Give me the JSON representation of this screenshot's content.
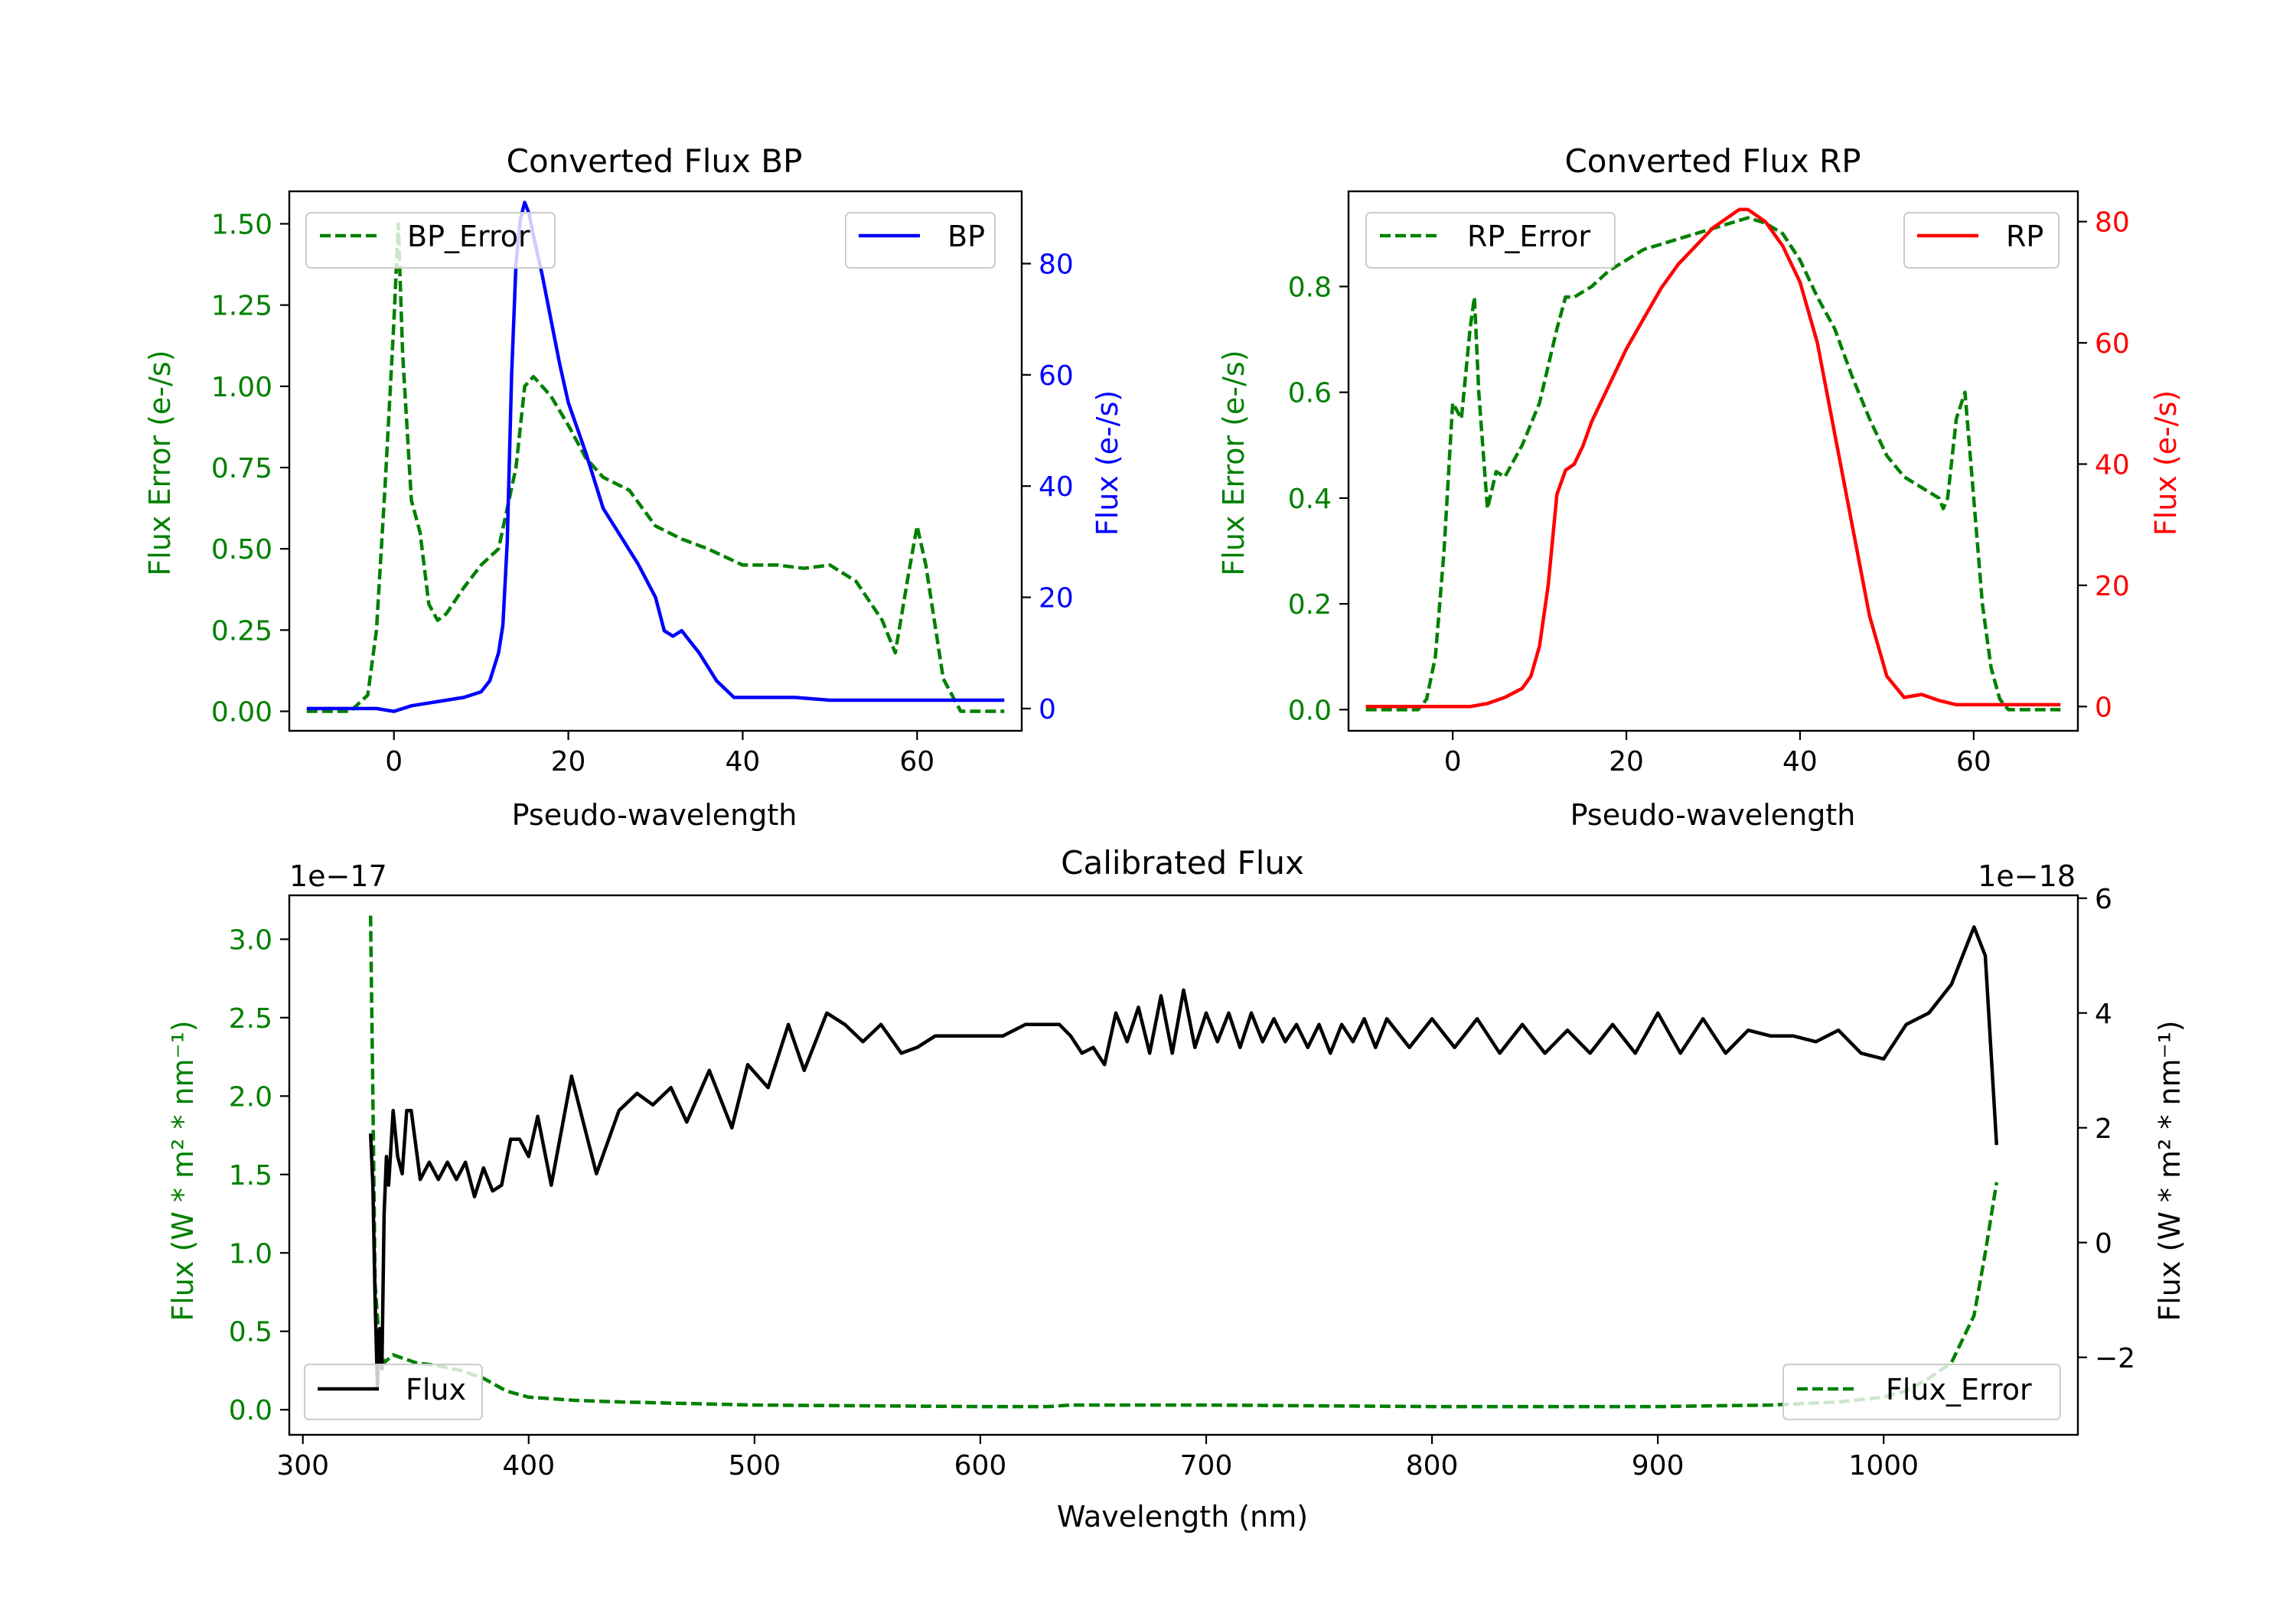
{
  "colors": {
    "green": "#008000",
    "blue": "#0000ff",
    "red": "#ff0000",
    "black": "#000000",
    "axis": "#000000",
    "legend_border": "#cccccc"
  },
  "chart_data": [
    {
      "id": "bp",
      "type": "line",
      "title": "Converted Flux BP",
      "xlabel": "Pseudo-wavelength",
      "ylabel_left": "Flux Error (e-/s)",
      "ylabel_right": "Flux (e-/s)",
      "xlim": [
        -12,
        72
      ],
      "ylim_left": [
        -0.06,
        1.6
      ],
      "ylim_right": [
        -4,
        93
      ],
      "xticks": [
        0,
        20,
        40,
        60
      ],
      "xtick_labels": [
        "0",
        "20",
        "40",
        "60"
      ],
      "yticks_left": [
        0.0,
        0.25,
        0.5,
        0.75,
        1.0,
        1.25,
        1.5
      ],
      "ytick_labels_left": [
        "0.00",
        "0.25",
        "0.50",
        "0.75",
        "1.00",
        "1.25",
        "1.50"
      ],
      "yticks_right": [
        0,
        20,
        40,
        60,
        80
      ],
      "ytick_labels_right": [
        "0",
        "20",
        "40",
        "60",
        "80"
      ],
      "series": [
        {
          "name": "BP_Error",
          "axis": "left",
          "style": "dashed",
          "color": "green",
          "x": [
            -10,
            -5,
            -3,
            -2,
            -1,
            0,
            0.5,
            1,
            2,
            3,
            4,
            5,
            6,
            8,
            10,
            12,
            14,
            15,
            16,
            18,
            20,
            22,
            24,
            27,
            30,
            33,
            36,
            40,
            44,
            47,
            50,
            53,
            56,
            57.5,
            59,
            60,
            61,
            63,
            65,
            68,
            70
          ],
          "y": [
            0.0,
            0.0,
            0.05,
            0.25,
            0.7,
            1.2,
            1.5,
            1.1,
            0.65,
            0.55,
            0.33,
            0.28,
            0.3,
            0.38,
            0.45,
            0.5,
            0.75,
            1.0,
            1.03,
            0.97,
            0.88,
            0.78,
            0.72,
            0.68,
            0.57,
            0.53,
            0.5,
            0.45,
            0.45,
            0.44,
            0.45,
            0.4,
            0.28,
            0.18,
            0.42,
            0.57,
            0.45,
            0.1,
            0.0,
            0.0,
            0.0
          ]
        },
        {
          "name": "BP",
          "axis": "right",
          "style": "solid",
          "color": "blue",
          "x": [
            -10,
            -2,
            0,
            2,
            4,
            6,
            8,
            10,
            11,
            12,
            12.5,
            13,
            13.5,
            14,
            14.5,
            15,
            15.5,
            16,
            17,
            18,
            19,
            20,
            22,
            24,
            26,
            28,
            30,
            31,
            32,
            33,
            35,
            37,
            39,
            42,
            46,
            50,
            55,
            60,
            65,
            70
          ],
          "y": [
            0,
            0,
            -0.5,
            0.5,
            1,
            1.5,
            2,
            3,
            5,
            10,
            15,
            30,
            60,
            80,
            88,
            91,
            89,
            85,
            78,
            70,
            62,
            55,
            46,
            36,
            31,
            26,
            20,
            14,
            13,
            14,
            10,
            5,
            2,
            2,
            2,
            1.5,
            1.5,
            1.5,
            1.5,
            1.5
          ]
        }
      ],
      "legend_left": [
        "BP_Error"
      ],
      "legend_right": [
        "BP"
      ]
    },
    {
      "id": "rp",
      "type": "line",
      "title": "Converted Flux RP",
      "xlabel": "Pseudo-wavelength",
      "ylabel_left": "Flux Error (e-/s)",
      "ylabel_right": "Flux (e-/s)",
      "xlim": [
        -12,
        72
      ],
      "ylim_left": [
        -0.04,
        0.98
      ],
      "ylim_right": [
        -4,
        85
      ],
      "xticks": [
        0,
        20,
        40,
        60
      ],
      "xtick_labels": [
        "0",
        "20",
        "40",
        "60"
      ],
      "yticks_left": [
        0.0,
        0.2,
        0.4,
        0.6,
        0.8
      ],
      "ytick_labels_left": [
        "0.0",
        "0.2",
        "0.4",
        "0.6",
        "0.8"
      ],
      "yticks_right": [
        0,
        20,
        40,
        60,
        80
      ],
      "ytick_labels_right": [
        "0",
        "20",
        "40",
        "60",
        "80"
      ],
      "series": [
        {
          "name": "RP_Error",
          "axis": "left",
          "style": "dashed",
          "color": "green",
          "x": [
            -10,
            -4,
            -3,
            -2,
            -1,
            0,
            1,
            2,
            2.5,
            3,
            4,
            5,
            6,
            8,
            10,
            12,
            13,
            14,
            16,
            18,
            20,
            22,
            24,
            26,
            28,
            30,
            32,
            34,
            36,
            38,
            40,
            42,
            44,
            46,
            48,
            50,
            52,
            54,
            56,
            56.5,
            57,
            58,
            59,
            60,
            61,
            62,
            63,
            64,
            66,
            70
          ],
          "y": [
            0.0,
            0.0,
            0.02,
            0.1,
            0.3,
            0.58,
            0.55,
            0.72,
            0.78,
            0.6,
            0.38,
            0.45,
            0.44,
            0.5,
            0.58,
            0.72,
            0.78,
            0.78,
            0.8,
            0.83,
            0.85,
            0.87,
            0.88,
            0.89,
            0.9,
            0.91,
            0.92,
            0.93,
            0.92,
            0.9,
            0.85,
            0.78,
            0.72,
            0.63,
            0.55,
            0.48,
            0.44,
            0.42,
            0.4,
            0.38,
            0.4,
            0.55,
            0.6,
            0.4,
            0.2,
            0.08,
            0.02,
            0.0,
            0.0,
            0.0
          ]
        },
        {
          "name": "RP",
          "axis": "right",
          "style": "solid",
          "color": "red",
          "x": [
            -10,
            0,
            2,
            4,
            6,
            8,
            9,
            10,
            11,
            12,
            13,
            14,
            15,
            16,
            18,
            20,
            22,
            24,
            26,
            28,
            30,
            32,
            33,
            34,
            35,
            36,
            38,
            40,
            42,
            44,
            46,
            48,
            50,
            52,
            54,
            56,
            58,
            60,
            62,
            66,
            70
          ],
          "y": [
            0,
            0,
            0,
            0.5,
            1.5,
            3,
            5,
            10,
            20,
            35,
            39,
            40,
            43,
            47,
            53,
            59,
            64,
            69,
            73,
            76,
            79,
            81,
            82,
            82,
            81,
            80,
            76,
            70,
            60,
            45,
            30,
            15,
            5,
            1.5,
            2,
            1,
            0.3,
            0.3,
            0.3,
            0.3,
            0.3
          ]
        }
      ],
      "legend_left": [
        "RP_Error"
      ],
      "legend_right": [
        "RP"
      ]
    },
    {
      "id": "cal",
      "type": "line",
      "title": "Calibrated Flux",
      "xlabel": "Wavelength (nm)",
      "ylabel_left": "Flux (W * m² * nm⁻¹)",
      "ylabel_right": "Flux (W * m² * nm⁻¹)",
      "offset_left": "1e−17",
      "offset_right": "1e−18",
      "xlim": [
        294,
        1086
      ],
      "ylim_left": [
        -0.16,
        3.28
      ],
      "ylim_right": [
        -3.35,
        6.05
      ],
      "xticks": [
        300,
        400,
        500,
        600,
        700,
        800,
        900,
        1000
      ],
      "xtick_labels": [
        "300",
        "400",
        "500",
        "600",
        "700",
        "800",
        "900",
        "1000"
      ],
      "yticks_left": [
        0.0,
        0.5,
        1.0,
        1.5,
        2.0,
        2.5,
        3.0
      ],
      "ytick_labels_left": [
        "0.0",
        "0.5",
        "1.0",
        "1.5",
        "2.0",
        "2.5",
        "3.0"
      ],
      "yticks_right": [
        -2,
        0,
        2,
        4,
        6
      ],
      "ytick_labels_right": [
        "−2",
        "0",
        "2",
        "4",
        "6"
      ],
      "series": [
        {
          "name": "Flux_Error",
          "axis": "left",
          "style": "dashed",
          "color": "green",
          "x": [
            330,
            331,
            332,
            334,
            336,
            340,
            350,
            360,
            370,
            380,
            390,
            400,
            420,
            440,
            500,
            600,
            630,
            640,
            700,
            800,
            900,
            950,
            980,
            1000,
            1010,
            1020,
            1030,
            1040,
            1045,
            1050
          ],
          "y": [
            3.15,
            2.0,
            0.8,
            0.4,
            0.3,
            0.35,
            0.3,
            0.28,
            0.25,
            0.2,
            0.12,
            0.08,
            0.06,
            0.05,
            0.03,
            0.02,
            0.02,
            0.03,
            0.03,
            0.02,
            0.02,
            0.03,
            0.05,
            0.08,
            0.12,
            0.2,
            0.3,
            0.6,
            1.0,
            1.45
          ]
        },
        {
          "name": "Flux",
          "axis": "right",
          "style": "solid",
          "color": "black",
          "x": [
            330,
            331,
            332,
            333,
            334,
            335,
            336,
            337,
            338,
            340,
            342,
            344,
            346,
            348,
            352,
            356,
            360,
            364,
            368,
            372,
            376,
            380,
            384,
            388,
            392,
            396,
            400,
            404,
            410,
            419,
            430,
            440,
            448,
            455,
            463,
            470,
            480,
            490,
            497,
            506,
            515,
            522,
            532,
            540,
            548,
            556,
            565,
            572,
            580,
            595,
            610,
            620,
            635,
            640,
            645,
            650,
            655,
            660,
            665,
            670,
            675,
            680,
            685,
            690,
            695,
            700,
            705,
            710,
            715,
            720,
            725,
            730,
            735,
            740,
            745,
            750,
            755,
            760,
            765,
            770,
            775,
            780,
            790,
            800,
            810,
            820,
            830,
            840,
            850,
            860,
            870,
            880,
            890,
            900,
            910,
            920,
            930,
            940,
            950,
            960,
            970,
            980,
            990,
            1000,
            1010,
            1020,
            1030,
            1035,
            1040,
            1045,
            1050
          ],
          "y": [
            1.9,
            1.0,
            -1.0,
            -2.5,
            -1.5,
            -2.2,
            0.5,
            1.5,
            1.0,
            2.3,
            1.5,
            1.2,
            2.3,
            2.3,
            1.1,
            1.4,
            1.1,
            1.4,
            1.1,
            1.4,
            0.8,
            1.3,
            0.9,
            1.0,
            1.8,
            1.8,
            1.5,
            2.2,
            1.0,
            2.9,
            1.2,
            2.3,
            2.6,
            2.4,
            2.7,
            2.1,
            3.0,
            2.0,
            3.1,
            2.7,
            3.8,
            3.0,
            4.0,
            3.8,
            3.5,
            3.8,
            3.3,
            3.4,
            3.6,
            3.6,
            3.6,
            3.8,
            3.8,
            3.6,
            3.3,
            3.4,
            3.1,
            4.0,
            3.5,
            4.1,
            3.3,
            4.3,
            3.3,
            4.4,
            3.4,
            4.0,
            3.5,
            4.0,
            3.4,
            4.0,
            3.5,
            3.9,
            3.5,
            3.8,
            3.4,
            3.8,
            3.3,
            3.8,
            3.5,
            3.9,
            3.4,
            3.9,
            3.4,
            3.9,
            3.4,
            3.9,
            3.3,
            3.8,
            3.3,
            3.7,
            3.3,
            3.8,
            3.3,
            4.0,
            3.3,
            3.9,
            3.3,
            3.7,
            3.6,
            3.6,
            3.5,
            3.7,
            3.3,
            3.2,
            3.8,
            4.0,
            4.5,
            5.0,
            5.5,
            5.0,
            1.7
          ]
        }
      ],
      "legend_left": [
        "Flux"
      ],
      "legend_right": [
        "Flux_Error"
      ]
    }
  ]
}
